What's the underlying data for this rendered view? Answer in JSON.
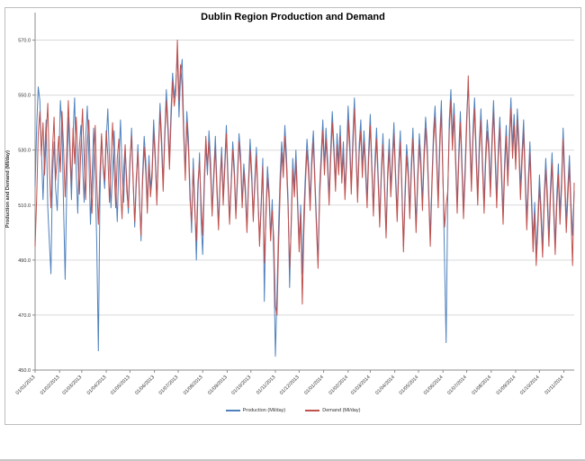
{
  "title": "Dublin Region Production and Demand",
  "y_axis_title": "Production and Demand (Ml/day)",
  "legend": [
    {
      "label": "Production (Ml/day)",
      "color": "#4F81BD"
    },
    {
      "label": "Demand (Ml/day)",
      "color": "#C0504D"
    }
  ],
  "chart_data": {
    "type": "line",
    "title": "Dublin Region Production and Demand",
    "xlabel": "",
    "ylabel": "Production and Demand (Ml/day)",
    "ylim": [
      450,
      580
    ],
    "y_ticks": [
      450,
      470,
      490,
      510,
      530,
      550,
      570
    ],
    "y_tick_labels": [
      "450.0",
      "470.0",
      "490.0",
      "510.0",
      "530.0",
      "550.0",
      "570.0"
    ],
    "grid": "horizontal-only",
    "legend_position": "bottom-center",
    "x_start": "01/01/2013",
    "sample_step_days": 2,
    "x_max_day": 682,
    "x_tick_labels": [
      "01/01/2013",
      "01/02/2013",
      "01/03/2013",
      "01/04/2013",
      "01/05/2013",
      "01/06/2013",
      "01/07/2013",
      "01/08/2013",
      "01/09/2013",
      "01/10/2013",
      "01/11/2013",
      "01/12/2013",
      "01/01/2014",
      "01/02/2014",
      "01/03/2014",
      "01/04/2014",
      "01/05/2014",
      "01/06/2014",
      "01/07/2014",
      "01/08/2014",
      "01/09/2014",
      "01/10/2014",
      "01/11/2014"
    ],
    "x_tick_days": [
      0,
      31,
      59,
      90,
      120,
      151,
      181,
      212,
      243,
      273,
      304,
      334,
      365,
      396,
      424,
      455,
      485,
      516,
      546,
      577,
      608,
      638,
      669
    ],
    "series": [
      {
        "name": "Production (Ml/day)",
        "color": "#4F81BD",
        "values": [
          517,
          539,
          553,
          548,
          530,
          512,
          528,
          541,
          509,
          497,
          485,
          521,
          533,
          516,
          508,
          524,
          548,
          538,
          510,
          483,
          515,
          542,
          530,
          512,
          536,
          549,
          522,
          507,
          531,
          539,
          525,
          511,
          534,
          546,
          528,
          503,
          519,
          538,
          521,
          496,
          457,
          512,
          535,
          524,
          516,
          533,
          545,
          527,
          509,
          522,
          537,
          518,
          504,
          526,
          541,
          523,
          511,
          530,
          519,
          507,
          524,
          538,
          520,
          502,
          517,
          532,
          514,
          497,
          521,
          535,
          526,
          510,
          528,
          516,
          523,
          541,
          529,
          512,
          530,
          547,
          535,
          518,
          536,
          552,
          540,
          527,
          545,
          558,
          549,
          554,
          565,
          542,
          557,
          563,
          539,
          522,
          544,
          534,
          516,
          500,
          527,
          511,
          490,
          514,
          529,
          505,
          492,
          516,
          532,
          521,
          537,
          526,
          508,
          522,
          535,
          518,
          503,
          519,
          531,
          513,
          526,
          539,
          521,
          505,
          518,
          533,
          524,
          507,
          521,
          536,
          528,
          511,
          525,
          517,
          502,
          519,
          534,
          522,
          506,
          520,
          531,
          513,
          497,
          511,
          527,
          475,
          508,
          524,
          515,
          499,
          512,
          490,
          455,
          478,
          502,
          521,
          533,
          524,
          539,
          528,
          512,
          480,
          505,
          527,
          516,
          530,
          513,
          496,
          510,
          485,
          507,
          522,
          534,
          525,
          511,
          528,
          537,
          520,
          504,
          490,
          517,
          529,
          541,
          524,
          538,
          527,
          513,
          531,
          544,
          532,
          518,
          536,
          525,
          539,
          521,
          533,
          515,
          528,
          546,
          534,
          517,
          535,
          549,
          531,
          514,
          532,
          541,
          523,
          537,
          526,
          512,
          530,
          543,
          525,
          509,
          527,
          538,
          521,
          505,
          523,
          536,
          519,
          500,
          522,
          534,
          516,
          528,
          540,
          522,
          507,
          525,
          537,
          518,
          495,
          515,
          532,
          524,
          508,
          526,
          538,
          520,
          503,
          521,
          536,
          527,
          511,
          529,
          542,
          533,
          515,
          498,
          519,
          537,
          546,
          529,
          513,
          535,
          548,
          521,
          489,
          460,
          513,
          541,
          552,
          534,
          547,
          528,
          510,
          530,
          544,
          526,
          509,
          524,
          543,
          554,
          536,
          519,
          538,
          549,
          530,
          514,
          533,
          545,
          527,
          511,
          529,
          541,
          533,
          517,
          535,
          548,
          530,
          513,
          531,
          542,
          524,
          507,
          526,
          539,
          521,
          536,
          549,
          531,
          543,
          527,
          545,
          534,
          516,
          529,
          541,
          523,
          505,
          520,
          533,
          514,
          497,
          511,
          492,
          505,
          521,
          509,
          495,
          513,
          527,
          515,
          499,
          517,
          529,
          511,
          496,
          514,
          525,
          507,
          519,
          538,
          521,
          504,
          517,
          528,
          510,
          499,
          515
        ]
      },
      {
        "name": "Demand (Ml/day)",
        "color": "#C0504D",
        "values": [
          495,
          513,
          536,
          544,
          528,
          540,
          521,
          535,
          547,
          524,
          509,
          530,
          542,
          519,
          527,
          535,
          522,
          544,
          531,
          513,
          529,
          548,
          533,
          517,
          538,
          525,
          542,
          528,
          514,
          531,
          545,
          527,
          512,
          533,
          541,
          522,
          507,
          524,
          539,
          518,
          503,
          521,
          536,
          525,
          519,
          537,
          528,
          511,
          526,
          540,
          523,
          509,
          527,
          534,
          517,
          505,
          523,
          532,
          515,
          509,
          527,
          535,
          518,
          504,
          520,
          529,
          512,
          499,
          518,
          531,
          522,
          507,
          525,
          513,
          520,
          537,
          526,
          510,
          528,
          544,
          531,
          515,
          533,
          548,
          537,
          523,
          541,
          555,
          546,
          551,
          570,
          548,
          561,
          553,
          535,
          519,
          540,
          530,
          512,
          504,
          523,
          508,
          497,
          518,
          526,
          511,
          499,
          520,
          535,
          524,
          533,
          521,
          506,
          519,
          531,
          515,
          501,
          517,
          528,
          510,
          523,
          536,
          518,
          503,
          516,
          530,
          521,
          505,
          518,
          533,
          525,
          509,
          522,
          514,
          500,
          516,
          530,
          519,
          504,
          517,
          528,
          511,
          495,
          509,
          524,
          489,
          505,
          520,
          512,
          497,
          508,
          498,
          473,
          470,
          495,
          515,
          529,
          520,
          535,
          524,
          509,
          487,
          502,
          523,
          513,
          526,
          510,
          493,
          507,
          474,
          500,
          518,
          530,
          521,
          508,
          524,
          533,
          517,
          501,
          487,
          513,
          525,
          537,
          521,
          534,
          523,
          510,
          527,
          540,
          529,
          515,
          532,
          521,
          535,
          518,
          529,
          512,
          524,
          541,
          530,
          514,
          531,
          545,
          528,
          511,
          529,
          537,
          520,
          533,
          522,
          509,
          526,
          539,
          522,
          506,
          523,
          534,
          518,
          502,
          520,
          532,
          516,
          498,
          519,
          530,
          513,
          524,
          536,
          519,
          504,
          521,
          533,
          515,
          493,
          511,
          528,
          520,
          505,
          522,
          534,
          517,
          500,
          517,
          532,
          523,
          508,
          525,
          538,
          529,
          512,
          495,
          516,
          533,
          542,
          525,
          509,
          531,
          544,
          518,
          502,
          510,
          515,
          537,
          548,
          530,
          543,
          524,
          507,
          526,
          540,
          522,
          505,
          520,
          539,
          557,
          532,
          515,
          534,
          545,
          526,
          510,
          529,
          541,
          523,
          507,
          525,
          537,
          529,
          513,
          531,
          544,
          526,
          509,
          527,
          538,
          520,
          503,
          522,
          535,
          517,
          532,
          545,
          527,
          539,
          523,
          541,
          530,
          512,
          525,
          537,
          519,
          501,
          516,
          529,
          510,
          493,
          507,
          488,
          501,
          517,
          505,
          491,
          509,
          523,
          511,
          495,
          513,
          525,
          507,
          492,
          510,
          521,
          503,
          515,
          534,
          517,
          500,
          513,
          524,
          506,
          488,
          518
        ]
      }
    ]
  }
}
